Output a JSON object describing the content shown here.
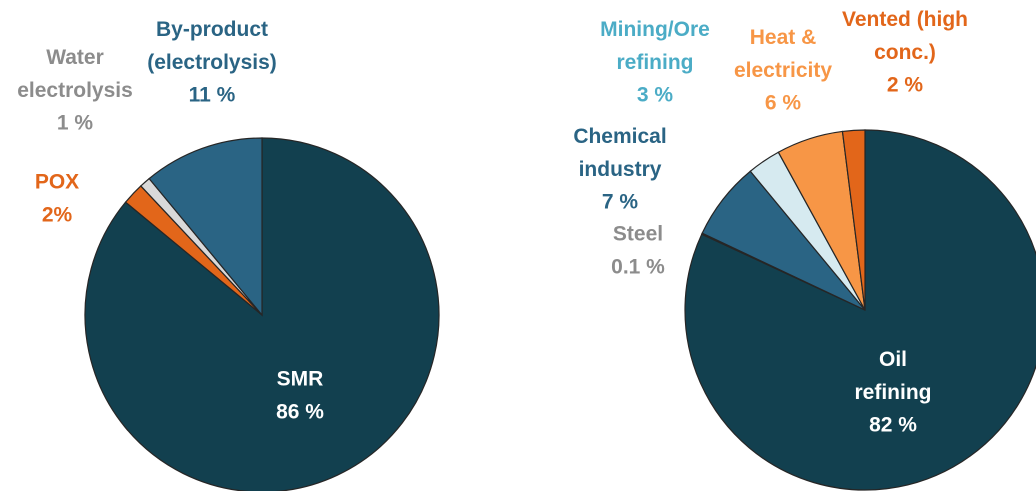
{
  "chart_data": [
    {
      "type": "pie",
      "categories": [
        "SMR",
        "POX",
        "Water\nelectrolysis",
        "By-product\n(electrolysis)"
      ],
      "values": [
        86,
        2,
        1,
        11
      ],
      "value_labels": [
        "86 %",
        "2%",
        "1 %",
        "11 %"
      ],
      "colors": [
        "#12404f",
        "#e2661a",
        "#d9d9d9",
        "#2a6484"
      ],
      "label_colors": [
        "#ffffff",
        "#e2661a",
        "#8c8c8c",
        "#2a6484"
      ]
    },
    {
      "type": "pie",
      "categories": [
        "Oil\nrefining",
        "Steel",
        "Chemical\nindustry",
        "Mining/Ore\nrefining",
        "Heat &\nelectricity",
        "Vented (high\nconc.)"
      ],
      "values": [
        82,
        0.1,
        7,
        3,
        6,
        2
      ],
      "value_labels": [
        "82 %",
        "0.1 %",
        "7 %",
        "3 %",
        "6 %",
        "2 %"
      ],
      "colors": [
        "#12404f",
        "#a6a6a6",
        "#2a6484",
        "#d6eaf0",
        "#f79646",
        "#e2661a"
      ],
      "label_colors": [
        "#ffffff",
        "#8c8c8c",
        "#2a6484",
        "#4bacc6",
        "#f79646",
        "#e2661a"
      ]
    }
  ]
}
